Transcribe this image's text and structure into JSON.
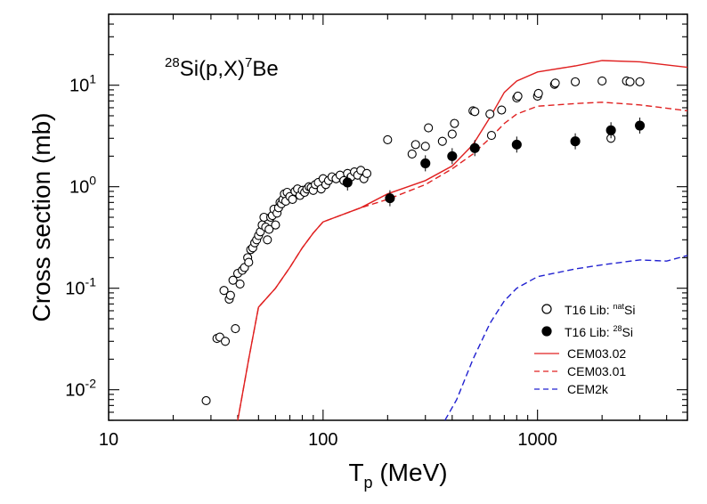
{
  "chart_data": {
    "type": "scatter",
    "title": {
      "mass": "28",
      "element": "Si(p,X)",
      "product_mass": "7",
      "product": "Be"
    },
    "xlabel": {
      "main": "T",
      "sub": "p",
      "unit": " (MeV)"
    },
    "ylabel": "Cross section (mb)",
    "xscale": "log",
    "yscale": "log",
    "xlim": [
      10,
      5000
    ],
    "ylim": [
      0.005,
      50
    ],
    "x_ticks": [
      {
        "value": 10,
        "label": "10"
      },
      {
        "value": 100,
        "label": "100"
      },
      {
        "value": 1000,
        "label": "1000"
      }
    ],
    "y_ticks": [
      {
        "value": 0.01,
        "base": "10",
        "exp": "-2"
      },
      {
        "value": 0.1,
        "base": "10",
        "exp": "-1"
      },
      {
        "value": 1,
        "base": "10",
        "exp": "0"
      },
      {
        "value": 10,
        "base": "10",
        "exp": "1"
      }
    ],
    "legend_position": "bottom-right",
    "legend": [
      {
        "prefix": "T16 Lib: ",
        "sup": "nat",
        "suffix": "Si",
        "kind": "open-circle"
      },
      {
        "prefix": "T16 Lib: ",
        "sup": "28",
        "suffix": "Si",
        "kind": "filled-circle"
      },
      {
        "prefix": "CEM03.02",
        "sup": "",
        "suffix": "",
        "kind": "solid-line",
        "color": "#e02020"
      },
      {
        "prefix": "CEM03.01",
        "sup": "",
        "suffix": "",
        "kind": "dashed-line",
        "color": "#e02020"
      },
      {
        "prefix": "CEM2k",
        "sup": "",
        "suffix": "",
        "kind": "dashed-line",
        "color": "#2020d0"
      }
    ],
    "series": [
      {
        "name": "T16 Lib: natSi",
        "kind": "open-circle",
        "x": [
          28.5,
          32,
          33,
          34.5,
          35,
          36.5,
          37,
          38,
          39,
          40,
          41,
          42,
          43,
          44.5,
          45,
          46,
          47,
          48,
          49,
          50,
          51,
          52,
          53,
          54,
          55,
          56,
          57,
          58,
          59,
          60,
          61,
          62,
          63,
          64,
          65,
          66,
          67,
          68,
          70,
          72,
          74,
          76,
          78,
          80,
          82,
          84,
          86,
          88,
          90,
          92,
          95,
          98,
          100,
          103,
          106,
          110,
          115,
          120,
          125,
          130,
          135,
          140,
          145,
          150,
          155,
          160,
          200,
          260,
          270,
          300,
          310,
          360,
          400,
          410,
          500,
          510,
          600,
          610,
          680,
          800,
          810,
          1000,
          1010,
          1200,
          1210,
          1500,
          2000,
          2200,
          2600,
          2700,
          3000
        ],
        "y": [
          0.0078,
          0.032,
          0.033,
          0.095,
          0.03,
          0.078,
          0.085,
          0.12,
          0.04,
          0.14,
          0.11,
          0.15,
          0.16,
          0.2,
          0.18,
          0.24,
          0.25,
          0.28,
          0.3,
          0.33,
          0.36,
          0.42,
          0.5,
          0.4,
          0.3,
          0.38,
          0.5,
          0.52,
          0.6,
          0.42,
          0.55,
          0.62,
          0.7,
          0.68,
          0.75,
          0.85,
          0.72,
          0.88,
          0.8,
          0.75,
          0.9,
          0.95,
          0.82,
          0.92,
          0.88,
          0.95,
          1.0,
          0.98,
          0.92,
          1.05,
          1.1,
          0.95,
          1.2,
          1.05,
          1.15,
          1.25,
          1.2,
          1.3,
          1.15,
          1.35,
          1.25,
          1.4,
          1.3,
          1.45,
          1.2,
          1.35,
          2.9,
          2.1,
          2.6,
          2.5,
          3.8,
          2.8,
          3.3,
          4.2,
          5.6,
          5.5,
          5.2,
          3.2,
          5.7,
          7.5,
          7.8,
          7.8,
          8.3,
          10.2,
          10.5,
          10.8,
          11.0,
          3.0,
          11.0,
          10.8,
          10.8
        ]
      },
      {
        "name": "T16 Lib: 28Si",
        "kind": "filled-circle",
        "x": [
          130,
          205,
          300,
          400,
          510,
          800,
          1500,
          2200,
          3000
        ],
        "y": [
          1.1,
          0.77,
          1.7,
          2.0,
          2.4,
          2.6,
          2.8,
          3.6,
          4.0
        ]
      },
      {
        "name": "CEM03.02",
        "kind": "solid-line",
        "color": "#e02020",
        "x": [
          40,
          45,
          50,
          60,
          70,
          80,
          90,
          100,
          150,
          200,
          300,
          400,
          500,
          600,
          700,
          800,
          1000,
          1500,
          2000,
          3000,
          5000
        ],
        "y": [
          0.005,
          0.02,
          0.065,
          0.1,
          0.16,
          0.25,
          0.35,
          0.45,
          0.62,
          0.85,
          1.15,
          1.6,
          2.6,
          4.8,
          8.5,
          11.0,
          13.5,
          15.5,
          17.5,
          17.0,
          15.0
        ]
      },
      {
        "name": "CEM03.01",
        "kind": "dashed-line",
        "color": "#e02020",
        "x": [
          40,
          45,
          50,
          60,
          70,
          80,
          90,
          100,
          150,
          200,
          300,
          400,
          500,
          600,
          700,
          800,
          1000,
          1500,
          2000,
          3000,
          5000
        ],
        "y": [
          0.005,
          0.02,
          0.065,
          0.1,
          0.16,
          0.25,
          0.35,
          0.45,
          0.62,
          0.75,
          1.05,
          1.5,
          2.1,
          3.0,
          4.2,
          5.2,
          6.2,
          6.6,
          6.8,
          6.4,
          5.6
        ]
      },
      {
        "name": "CEM2k",
        "kind": "dashed-line",
        "color": "#2020d0",
        "x": [
          370,
          420,
          500,
          600,
          700,
          800,
          1000,
          1500,
          2000,
          3000,
          4000,
          5000
        ],
        "y": [
          0.005,
          0.008,
          0.02,
          0.045,
          0.075,
          0.1,
          0.13,
          0.155,
          0.17,
          0.19,
          0.185,
          0.21
        ]
      }
    ]
  }
}
